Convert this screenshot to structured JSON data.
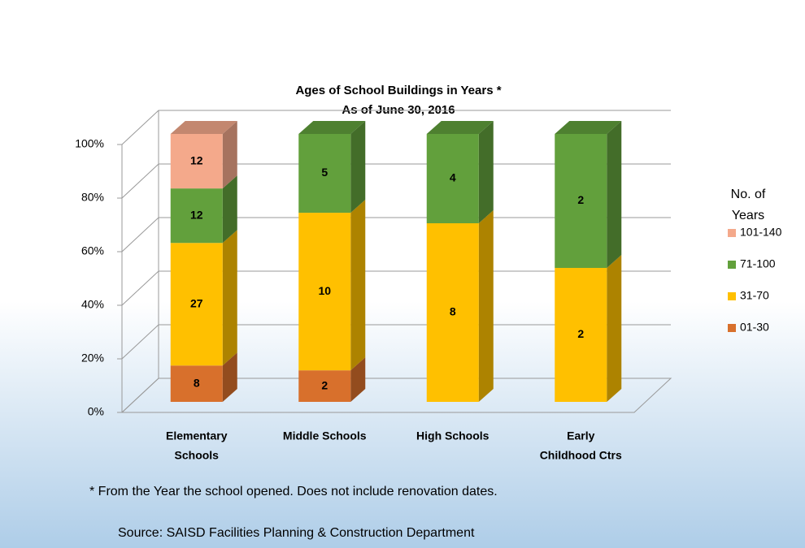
{
  "chart_data": {
    "type": "bar",
    "stacking": "percent",
    "title": "Ages of School Buildings in Years *",
    "subtitle": "As of June 30, 2016",
    "categories": [
      [
        "Elementary",
        "Schools"
      ],
      [
        "Middle Schools"
      ],
      [
        "High Schools"
      ],
      [
        "Early",
        "Childhood Ctrs"
      ]
    ],
    "series": [
      {
        "name": "01-30",
        "color": "#d8702c",
        "values": [
          8,
          2,
          null,
          null
        ]
      },
      {
        "name": "31-70",
        "color": "#ffc000",
        "values": [
          27,
          10,
          8,
          2
        ]
      },
      {
        "name": "71-100",
        "color": "#62a03c",
        "values": [
          12,
          5,
          4,
          2
        ]
      },
      {
        "name": "101-140",
        "color": "#f4a98b",
        "values": [
          12,
          null,
          null,
          null
        ]
      }
    ],
    "ylim": [
      0,
      100
    ],
    "yticks": [
      {
        "value": 0,
        "label": "0%"
      },
      {
        "value": 20,
        "label": "20%"
      },
      {
        "value": 40,
        "label": "40%"
      },
      {
        "value": 60,
        "label": "60%"
      },
      {
        "value": 80,
        "label": "80%"
      },
      {
        "value": 100,
        "label": "100%"
      }
    ],
    "grid": true,
    "legend": {
      "title": [
        "No. of",
        "Years"
      ],
      "position": "right"
    },
    "notes": [
      "* From the Year the school opened. Does not include renovation dates.",
      "Source: SAISD Facilities Planning & Construction Department"
    ]
  }
}
